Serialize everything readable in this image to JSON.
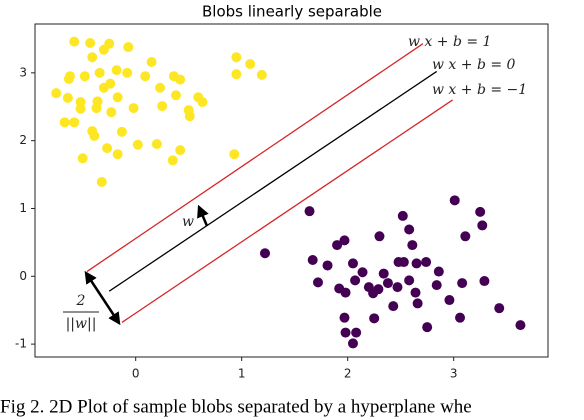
{
  "chart_data": {
    "type": "scatter",
    "title": "Blobs linearly separable",
    "xlim": [
      -0.95,
      3.89
    ],
    "ylim": [
      -1.19,
      3.72
    ],
    "xticks": [
      0,
      1,
      2,
      3
    ],
    "yticks": [
      -1,
      0,
      1,
      2,
      3
    ],
    "grid": false,
    "series": [
      {
        "color": "#fde725",
        "x": [
          -0.58,
          -0.43,
          -0.25,
          -0.07,
          -0.3,
          -0.41,
          0.15,
          0.95,
          -0.62,
          -0.48,
          -0.34,
          -0.18,
          -0.08,
          0.09,
          0.36,
          0.42,
          -0.63,
          -0.75,
          -0.64,
          -0.52,
          -0.36,
          -0.24,
          -0.3,
          -0.17,
          0.23,
          0.38,
          0.59,
          0.5,
          -0.37,
          -0.23,
          -0.02,
          0.25,
          0.51,
          -0.52,
          -0.67,
          -0.58,
          -0.41,
          -0.39,
          -0.13,
          0.02,
          0.2,
          0.42,
          -0.27,
          -0.5,
          -0.17,
          0.35,
          -0.32,
          0.93,
          0.95,
          1.08,
          1.19,
          0.63
        ],
        "y": [
          3.46,
          3.44,
          3.43,
          3.38,
          3.34,
          3.23,
          3.16,
          3.23,
          2.95,
          2.95,
          3.0,
          3.04,
          3.0,
          2.95,
          2.95,
          2.9,
          2.91,
          2.7,
          2.63,
          2.57,
          2.58,
          2.84,
          2.78,
          2.64,
          2.78,
          2.67,
          2.64,
          2.45,
          2.48,
          2.42,
          2.48,
          2.51,
          2.36,
          2.47,
          2.27,
          2.27,
          2.14,
          2.07,
          2.13,
          1.94,
          1.95,
          1.86,
          1.89,
          1.74,
          1.8,
          1.71,
          1.39,
          1.8,
          2.98,
          3.13,
          2.97,
          2.57
        ]
      },
      {
        "color": "#440154",
        "x": [
          1.64,
          1.22,
          3.01,
          3.25,
          3.11,
          3.27,
          2.52,
          2.58,
          1.97,
          1.9,
          2.05,
          2.3,
          2.61,
          1.67,
          2.48,
          2.53,
          2.74,
          2.86,
          2.65,
          2.34,
          2.14,
          1.81,
          1.72,
          2.07,
          1.92,
          1.98,
          2.2,
          2.29,
          2.38,
          2.47,
          2.58,
          2.64,
          2.84,
          3.08,
          3.29,
          2.96,
          2.66,
          2.43,
          3.06,
          2.25,
          1.97,
          3.43,
          3.63,
          2.75,
          1.98,
          2.05,
          2.08,
          2.24
        ],
        "y": [
          0.96,
          0.34,
          1.12,
          0.95,
          0.59,
          0.75,
          0.89,
          0.69,
          0.53,
          0.46,
          0.19,
          0.59,
          0.46,
          0.24,
          0.21,
          0.21,
          0.21,
          0.07,
          0.19,
          0.04,
          0.06,
          0.16,
          -0.09,
          -0.06,
          -0.18,
          -0.24,
          -0.16,
          -0.19,
          -0.1,
          -0.16,
          -0.06,
          -0.24,
          -0.13,
          -0.1,
          -0.07,
          -0.35,
          -0.4,
          -0.44,
          -0.61,
          -0.62,
          -0.61,
          -0.47,
          -0.72,
          -0.75,
          -0.83,
          -0.99,
          -0.83,
          -0.25
        ]
      }
    ],
    "lines": [
      {
        "label": "w x + b = 1",
        "color": "#d62728",
        "x": [
          -0.46,
          2.71
        ],
        "y": [
          0.07,
          3.43
        ]
      },
      {
        "label": "w x + b = 0",
        "color": "#000000",
        "x": [
          -0.25,
          2.84
        ],
        "y": [
          -0.22,
          3.02
        ]
      },
      {
        "label": "w x + b = −1",
        "color": "#d62728",
        "x": [
          -0.13,
          2.99
        ],
        "y": [
          -0.68,
          2.6
        ]
      }
    ],
    "annotations": {
      "w": "w",
      "margin_numerator": "2",
      "margin_denominator": "||w||"
    },
    "caption": "Fig 2. 2D Plot of sample blobs separated by a hyperplane whe"
  }
}
